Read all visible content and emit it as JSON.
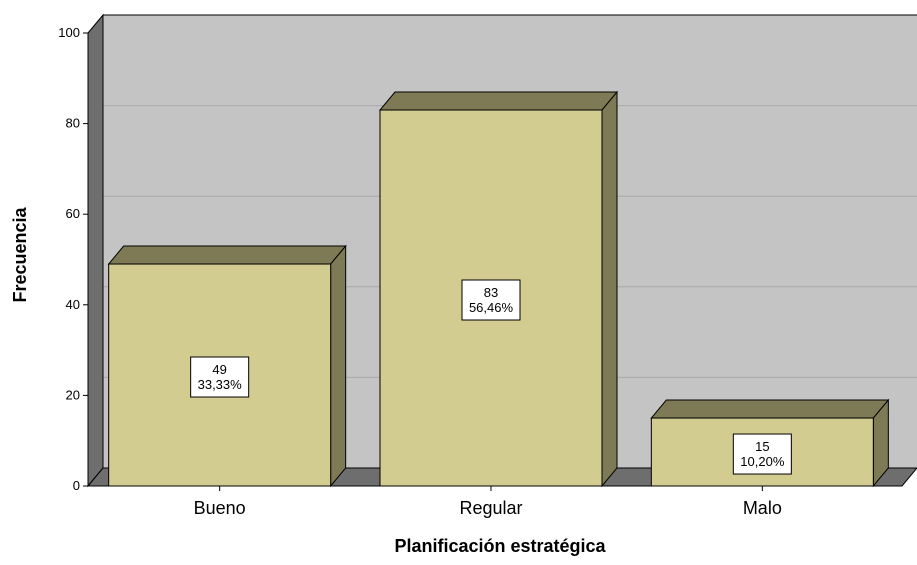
{
  "chart_data": {
    "type": "bar",
    "title": "",
    "xlabel": "Planificación estratégica",
    "ylabel": "Frecuencia",
    "categories": [
      "Bueno",
      "Regular",
      "Malo"
    ],
    "values": [
      49,
      83,
      15
    ],
    "data_labels": [
      {
        "count": "49",
        "percent": "33,33%"
      },
      {
        "count": "83",
        "percent": "56,46%"
      },
      {
        "count": "15",
        "percent": "10,20%"
      }
    ],
    "ylim": [
      0,
      100
    ],
    "yticks": [
      "0",
      "20",
      "40",
      "60",
      "80",
      "100"
    ],
    "grid": true,
    "legend": "none",
    "style": "3d",
    "colors": {
      "bar_front": "#d3cc91",
      "bar_top": "#7e7a55",
      "bar_side": "#7e7a55",
      "plot_back": "#c4c4c4",
      "plot_floor": "#6e6e6e",
      "plot_left_wall": "#6e6e6e",
      "grid": "#a8a8a8",
      "outline": "#000000"
    }
  }
}
